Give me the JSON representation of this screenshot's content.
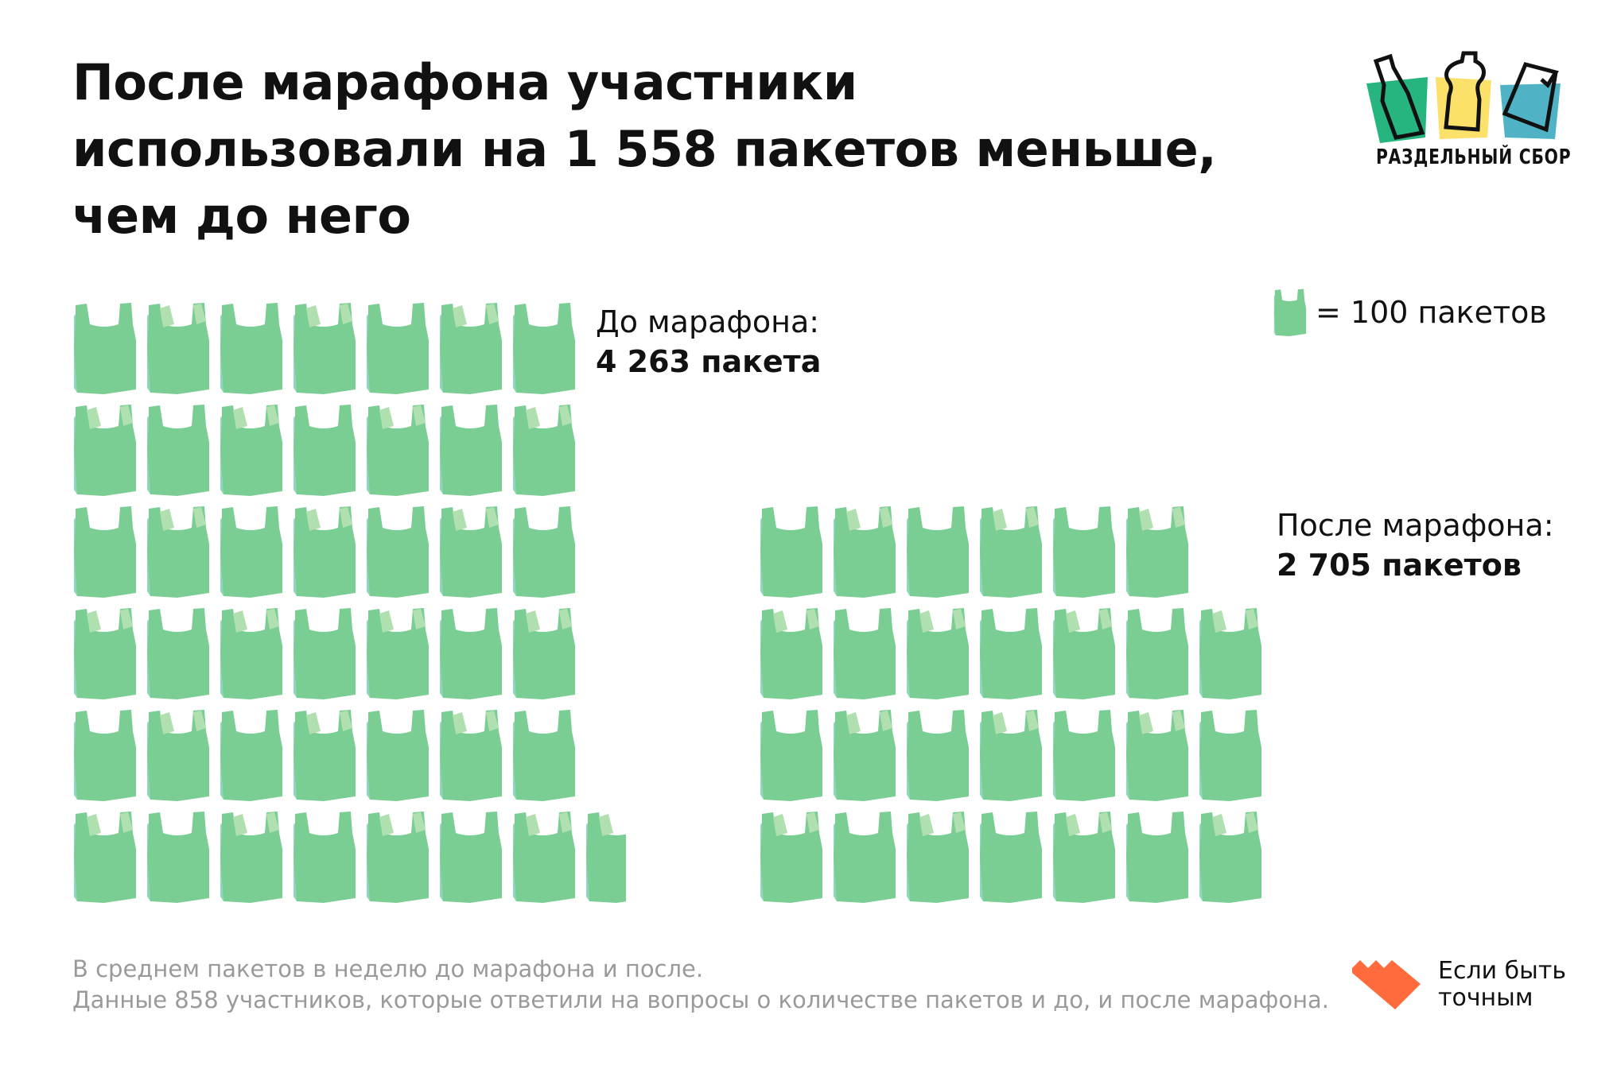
{
  "title": {
    "line1": "После марафона участники",
    "line2": "использовали на 1 558 пакетов меньше,",
    "line3": "чем до него"
  },
  "logo": {
    "text": "РАЗДЕЛЬНЫЙ СБОР",
    "colors": [
      "#26b57f",
      "#fbe06a",
      "#4fb3c5"
    ]
  },
  "legend": {
    "text": "= 100 пакетов",
    "unit": 100
  },
  "before": {
    "label": "До марафона:",
    "value_text": "4 263 пакета",
    "value": 4263
  },
  "after": {
    "label": "После марафона:",
    "value_text": "2 705 пакетов",
    "value": 2705
  },
  "footnote": {
    "line1": "В среднем пакетов в неделю до марафона и после.",
    "line2": "Данные 858 участников, которые ответили на вопросы о количестве пакетов и до, и после марафона."
  },
  "brand": {
    "line1": "Если быть",
    "line2": "точным",
    "color": "#ff6b3d"
  },
  "colors": {
    "bag": "#7acd93",
    "bag_side": "#8fd8bd",
    "bag_handle": "#b0dfb0"
  }
}
